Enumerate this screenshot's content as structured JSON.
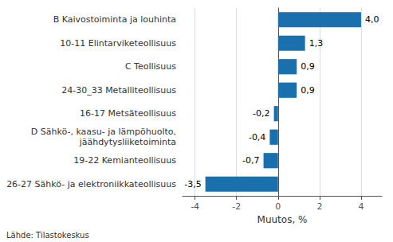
{
  "chart_data": {
    "type": "bar",
    "orientation": "horizontal",
    "categories": [
      "26-27 Sähkö- ja elektroniikkateollisuus",
      "19-22 Kemianteollisuus",
      "D Sähkö-, kaasu- ja lämpöhuolto,\njäähdytysliiketoiminta",
      "16-17 Metsäteollisuus",
      "24-30_33 Metalliteollisuus",
      "C Teollisuus",
      "10-11 Elintarviketeollisuus",
      "B Kaivostoiminta ja louhinta"
    ],
    "values": [
      -3.5,
      -0.7,
      -0.4,
      -0.2,
      0.9,
      0.9,
      1.3,
      4.0
    ],
    "value_labels": [
      "-3,5",
      "-0,7",
      "-0,4",
      "-0,2",
      "0,9",
      "0,9",
      "1,3",
      "4,0"
    ],
    "data_labels": true,
    "color": "#1a6fad",
    "xlabel": "Muutos, %",
    "xlim": [
      -4.6,
      5.0
    ],
    "xticks": [
      -4,
      -2,
      0,
      2,
      4
    ],
    "grid": true,
    "annotations": [
      "Lähde: Tilastokeskus"
    ]
  }
}
